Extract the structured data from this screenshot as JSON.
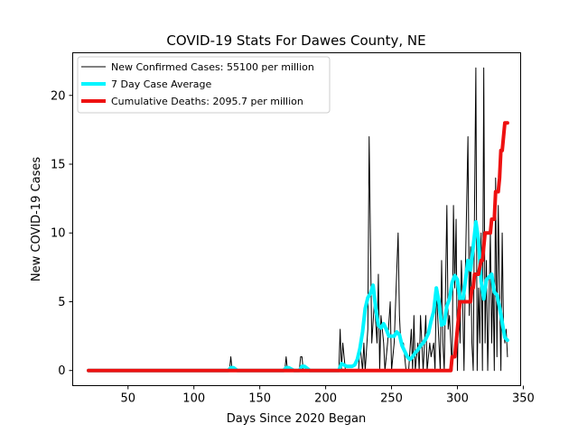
{
  "chart_data": {
    "type": "line",
    "title": "COVID-19 Stats For Dawes County, NE",
    "xlabel": "Days Since 2020 Began",
    "ylabel": "New COVID-19 Cases",
    "xlim": [
      8,
      348
    ],
    "ylim": [
      -1.1,
      23.1
    ],
    "xticks": [
      50,
      100,
      150,
      200,
      250,
      300,
      350
    ],
    "yticks": [
      0,
      5,
      10,
      15,
      20
    ],
    "grid": false,
    "legend_position": "top-left",
    "series": [
      {
        "name": "New Confirmed Cases: 55100 per million",
        "color": "#000000",
        "x": [
          20,
          126,
          127,
          128,
          129,
          130,
          168,
          169,
          170,
          171,
          180,
          181,
          182,
          183,
          210,
          211,
          212,
          213,
          215,
          217,
          220,
          225,
          226,
          227,
          228,
          229,
          230,
          232,
          233,
          235,
          237,
          239,
          240,
          241,
          242,
          244,
          245,
          247,
          249,
          250,
          252,
          255,
          256,
          257,
          259,
          261,
          263,
          265,
          266,
          267,
          268,
          270,
          271,
          272,
          274,
          276,
          277,
          279,
          280,
          282,
          283,
          284,
          285,
          287,
          288,
          289,
          290,
          292,
          293,
          294,
          296,
          297,
          298,
          299,
          300,
          301,
          302,
          303,
          304,
          305,
          306,
          307,
          308,
          309,
          310,
          311,
          312,
          313,
          314,
          315,
          316,
          317,
          318,
          319,
          320,
          321,
          322,
          323,
          324,
          325,
          326,
          327,
          328,
          329,
          330,
          331,
          332,
          333,
          334,
          335,
          336,
          337,
          338
        ],
        "y": [
          0,
          0,
          0,
          1,
          0,
          0,
          0,
          0,
          1,
          0,
          0,
          1,
          1,
          0,
          0,
          3,
          0,
          2,
          0,
          0,
          0,
          0,
          2,
          1,
          0,
          2,
          0,
          3,
          17,
          2,
          5,
          2,
          7,
          0,
          4,
          2,
          0,
          2,
          5,
          0,
          2,
          10,
          4,
          2,
          2,
          0,
          0,
          3,
          0,
          4,
          0,
          2,
          0,
          4,
          0,
          4,
          0,
          2,
          1,
          2,
          0,
          6,
          4,
          0,
          8,
          2,
          0,
          12,
          3,
          4,
          0,
          12,
          6,
          11,
          0,
          6,
          2,
          8,
          5,
          0,
          7,
          12,
          17,
          4,
          9,
          2,
          0,
          12,
          22,
          0,
          6,
          2,
          10,
          0,
          22,
          2,
          8,
          0,
          5,
          10,
          2,
          7,
          0,
          14,
          1,
          12,
          6,
          0,
          10,
          3,
          2,
          3,
          1
        ]
      },
      {
        "name": "7 Day Case Average",
        "color": "#00f5ff",
        "x": [
          20,
          126,
          128,
          130,
          133,
          168,
          170,
          172,
          176,
          180,
          182,
          184,
          188,
          210,
          212,
          214,
          216,
          218,
          220,
          222,
          224,
          226,
          228,
          230,
          232,
          234,
          236,
          238,
          240,
          242,
          244,
          246,
          248,
          250,
          252,
          254,
          256,
          258,
          260,
          262,
          264,
          266,
          268,
          270,
          272,
          274,
          276,
          278,
          280,
          282,
          284,
          286,
          288,
          290,
          292,
          294,
          296,
          298,
          300,
          302,
          304,
          306,
          308,
          310,
          312,
          314,
          316,
          318,
          320,
          322,
          324,
          326,
          328,
          330,
          332,
          334,
          336,
          338
        ],
        "y": [
          0,
          0,
          0.2,
          0.2,
          0,
          0,
          0.2,
          0.2,
          0,
          0,
          0.3,
          0.3,
          0,
          0,
          0.5,
          0.4,
          0.3,
          0.3,
          0.3,
          0.4,
          0.8,
          1.6,
          2.8,
          4.5,
          5.3,
          5.6,
          6.2,
          4.5,
          3.3,
          3.1,
          3.4,
          3.0,
          2.5,
          2.5,
          2.5,
          2.8,
          2.6,
          1.8,
          1.4,
          1.0,
          0.8,
          1.0,
          1.3,
          1.5,
          1.8,
          2.0,
          2.3,
          2.7,
          3.6,
          4.3,
          6.0,
          5.0,
          3.3,
          3.4,
          4.7,
          5.2,
          6.4,
          6.9,
          6.6,
          5.2,
          5.0,
          6.5,
          8.0,
          7.3,
          9.0,
          10.8,
          9.5,
          6.5,
          5.2,
          6.6,
          6.8,
          7.0,
          5.7,
          5.5,
          4.6,
          3.5,
          2.4,
          2.2
        ]
      },
      {
        "name": "Cumulative Deaths: 2095.7 per million",
        "color": "#ee1111",
        "x": [
          20,
          295,
          296,
          298,
          299,
          300,
          301,
          302,
          304,
          305,
          306,
          310,
          311,
          312,
          313,
          315,
          316,
          318,
          319,
          320,
          321,
          322,
          324,
          325,
          326,
          327,
          328,
          329,
          330,
          331,
          332,
          333,
          334,
          335,
          336,
          337,
          338
        ],
        "y": [
          0,
          0,
          1,
          1,
          2,
          3,
          4,
          5,
          5,
          5,
          5,
          5,
          6,
          6,
          7,
          7,
          7,
          8,
          8,
          9,
          10,
          10,
          10,
          10,
          11,
          11,
          11,
          13,
          13,
          13,
          14,
          16,
          16,
          17,
          18,
          18,
          18
        ]
      }
    ]
  }
}
